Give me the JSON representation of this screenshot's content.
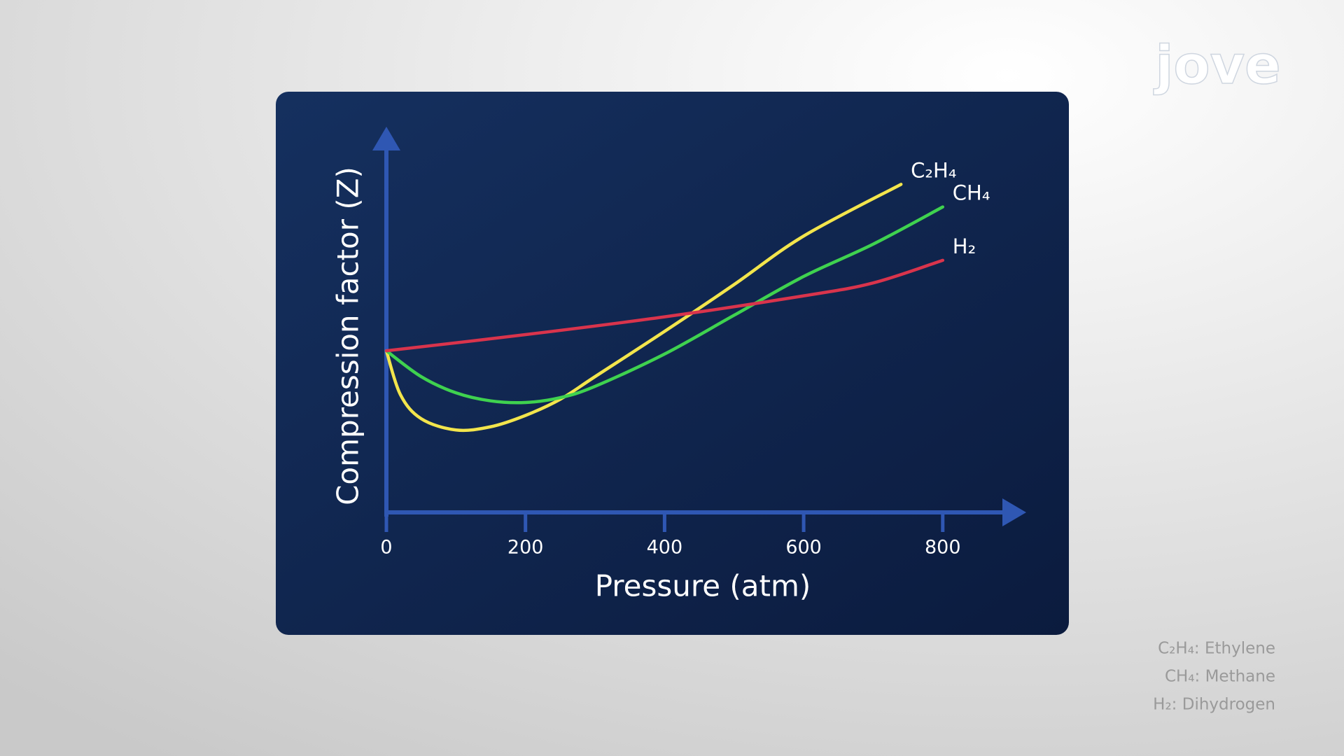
{
  "chart_data": {
    "type": "line",
    "x_label": "Pressure (atm)",
    "y_label": "Compression factor (Z)",
    "xlim": [
      0,
      920
    ],
    "ylim": [
      0,
      2.3
    ],
    "xticks": [
      0,
      200,
      400,
      600,
      800
    ],
    "series": [
      {
        "name": "C₂H₄",
        "color": "#f3e54c",
        "x": [
          0,
          20,
          50,
          100,
          150,
          200,
          250,
          300,
          400,
          500,
          600,
          740
        ],
        "values": [
          1,
          0.73,
          0.58,
          0.51,
          0.53,
          0.6,
          0.7,
          0.84,
          1.12,
          1.41,
          1.71,
          2.03
        ]
      },
      {
        "name": "CH₄",
        "color": "#3fd24f",
        "x": [
          0,
          50,
          100,
          150,
          200,
          250,
          300,
          400,
          500,
          600,
          700,
          800
        ],
        "values": [
          1,
          0.84,
          0.74,
          0.69,
          0.68,
          0.71,
          0.78,
          0.98,
          1.22,
          1.46,
          1.66,
          1.89
        ]
      },
      {
        "name": "H₂",
        "color": "#d9344c",
        "x": [
          0,
          200,
          400,
          600,
          700,
          800
        ],
        "values": [
          1,
          1.1,
          1.21,
          1.34,
          1.42,
          1.56
        ]
      }
    ]
  },
  "notes": [
    "C₂H₄: Ethylene",
    "CH₄: Methane",
    "H₂: Dihydrogen"
  ],
  "logo": "jove"
}
